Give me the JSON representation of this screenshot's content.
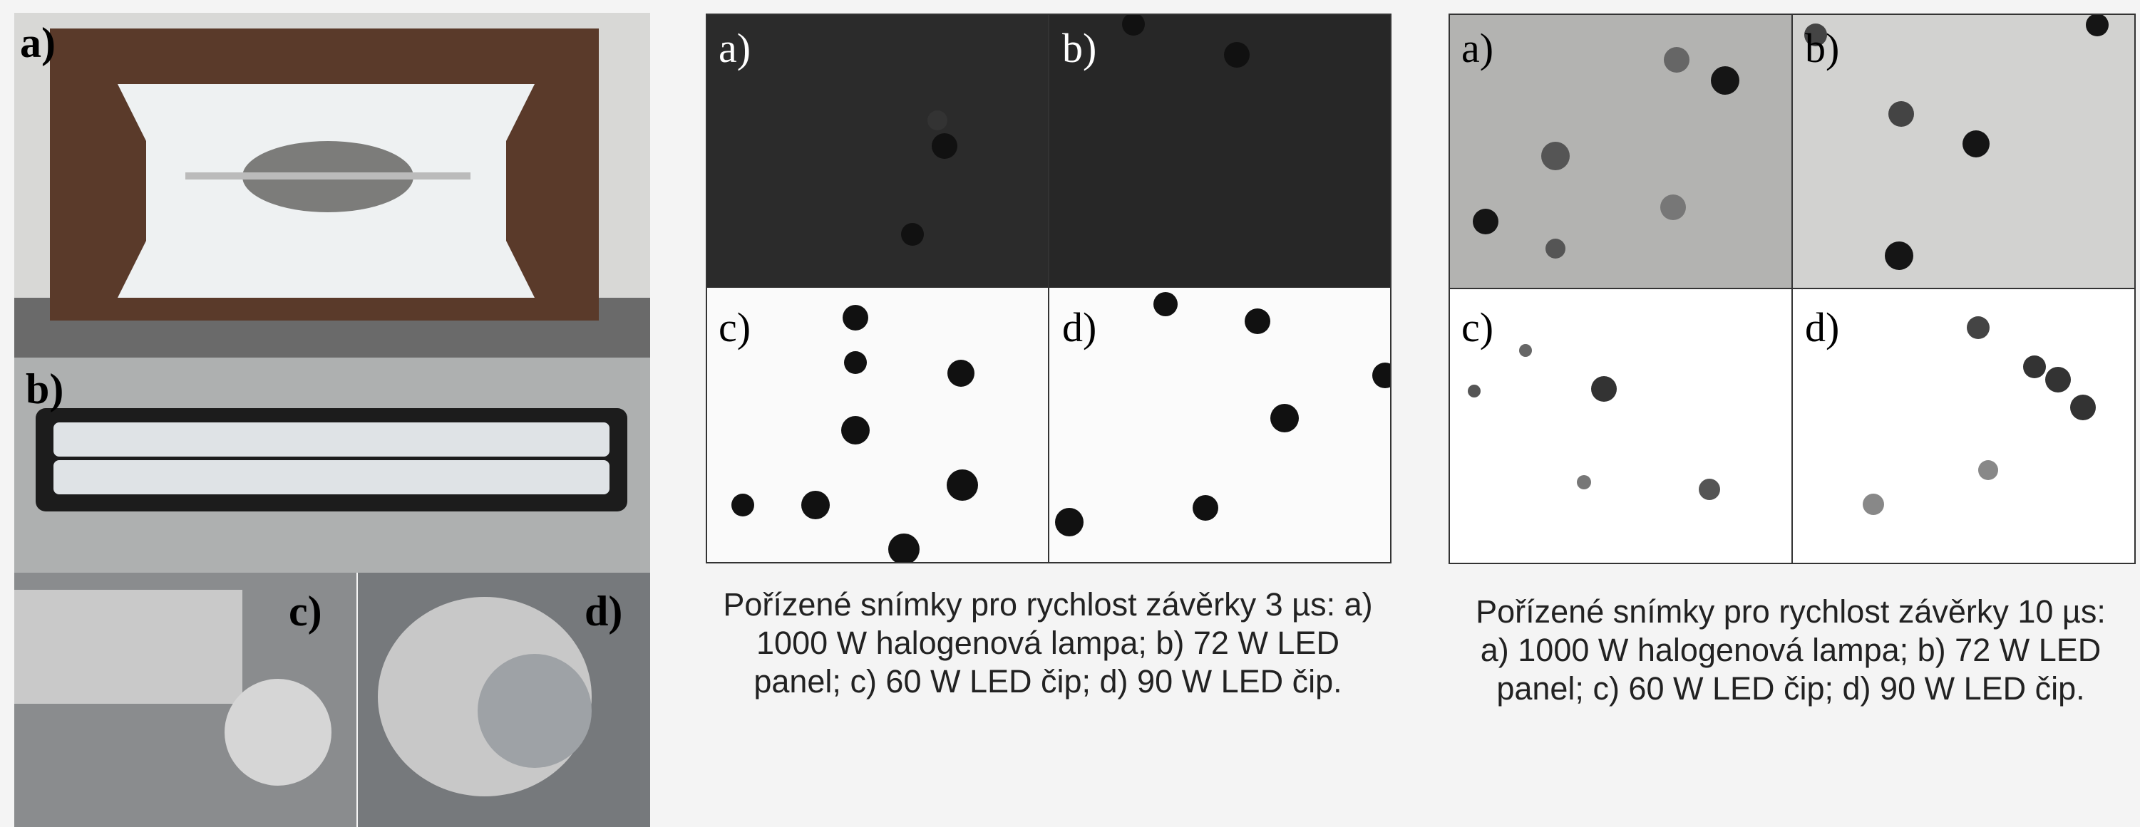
{
  "photos": {
    "labels": [
      "a)",
      "b)",
      "c)",
      "d)"
    ]
  },
  "figures": [
    {
      "labels": [
        "a)",
        "b)",
        "c)",
        "d)"
      ],
      "caption": "Pořízené snímky pro rychlost závěrky 3 µs: a) 1000 W halogenová lampa; b) 72 W LED panel; c) 60 W LED čip; d) 90 W LED čip."
    },
    {
      "labels": [
        "a)",
        "b)",
        "c)",
        "d)"
      ],
      "caption": "Pořízené snímky pro rychlost závěrky 10 µs: a) 1000 W halogenová lampa; b) 72 W LED panel; c) 60 W LED čip; d) 90 W LED čip."
    }
  ]
}
